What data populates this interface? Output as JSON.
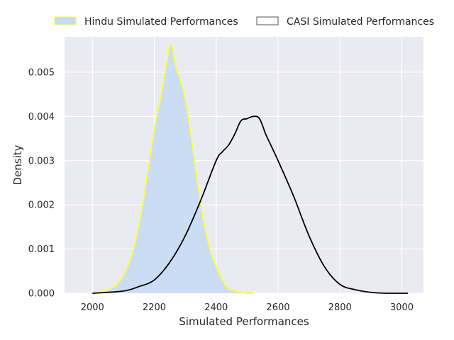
{
  "chart_data": {
    "type": "area",
    "title": "",
    "xlabel": "Simulated Performances",
    "ylabel": "Density",
    "xlim": [
      1910,
      3070
    ],
    "ylim": [
      0,
      0.0058
    ],
    "xticks": [
      2000,
      2200,
      2400,
      2600,
      2800,
      3000
    ],
    "yticks": [
      0.0,
      0.001,
      0.002,
      0.003,
      0.004,
      0.005
    ],
    "ytick_labels": [
      "0.000",
      "0.001",
      "0.002",
      "0.003",
      "0.004",
      "0.005"
    ],
    "grid": true,
    "legend_position": "top",
    "background_color": "#eaeaf2",
    "series": [
      {
        "name": "Hindu Simulated Performances",
        "fill": "#c6dbf4",
        "stroke": "#ffff33",
        "filled": true,
        "x": [
          2000,
          2040,
          2080,
          2100,
          2120,
          2140,
          2160,
          2180,
          2200,
          2220,
          2240,
          2250,
          2260,
          2270,
          2280,
          2300,
          2320,
          2340,
          2360,
          2380,
          2400,
          2420,
          2440,
          2460,
          2480,
          2500,
          2520
        ],
        "y": [
          0.0,
          5e-05,
          0.0002,
          0.0004,
          0.0007,
          0.0012,
          0.0019,
          0.0028,
          0.0037,
          0.0044,
          0.0052,
          0.0056,
          0.0055,
          0.0051,
          0.0049,
          0.0044,
          0.0035,
          0.0025,
          0.0016,
          0.001,
          0.0006,
          0.0003,
          0.0001,
          5e-05,
          2e-05,
          0.0,
          0.0
        ]
      },
      {
        "name": "CASI Simulated Performances",
        "fill": "none",
        "stroke": "#000000",
        "filled": false,
        "x": [
          2000,
          2100,
          2150,
          2200,
          2250,
          2300,
          2350,
          2400,
          2420,
          2440,
          2460,
          2480,
          2500,
          2520,
          2540,
          2560,
          2580,
          2600,
          2650,
          2700,
          2750,
          2800,
          2850,
          2900,
          2950,
          3000,
          3020
        ],
        "y": [
          0.0,
          5e-05,
          0.00015,
          0.0003,
          0.0007,
          0.0013,
          0.0021,
          0.003,
          0.0032,
          0.00335,
          0.0036,
          0.0039,
          0.00395,
          0.004,
          0.00395,
          0.0036,
          0.0033,
          0.003,
          0.0022,
          0.0013,
          0.0006,
          0.0002,
          8e-05,
          2e-05,
          0.0,
          0.0,
          0.0
        ]
      }
    ]
  }
}
